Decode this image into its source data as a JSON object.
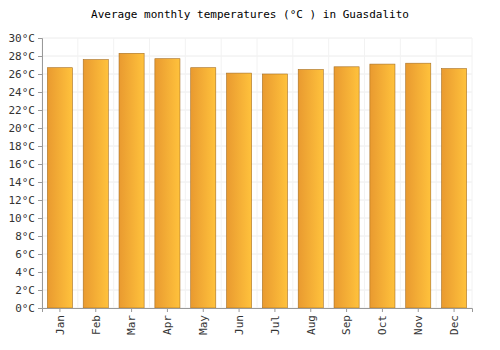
{
  "chart_data": {
    "type": "bar",
    "title": "Average monthly temperatures (°C ) in Guasdalito",
    "categories": [
      "Jan",
      "Feb",
      "Mar",
      "Apr",
      "May",
      "Jun",
      "Jul",
      "Aug",
      "Sep",
      "Oct",
      "Nov",
      "Dec"
    ],
    "values": [
      26.7,
      27.6,
      28.3,
      27.7,
      26.7,
      26.1,
      26.0,
      26.5,
      26.8,
      27.1,
      27.2,
      26.6
    ],
    "color": "#ffa834",
    "ylim": [
      0,
      30
    ],
    "yticks": [
      {
        "value": 0,
        "label": "0°C"
      },
      {
        "value": 2,
        "label": "2°C"
      },
      {
        "value": 4,
        "label": "4°C"
      },
      {
        "value": 6,
        "label": "6°C"
      },
      {
        "value": 8,
        "label": "8°C"
      },
      {
        "value": 10,
        "label": "10°C"
      },
      {
        "value": 12,
        "label": "12°C"
      },
      {
        "value": 14,
        "label": "14°C"
      },
      {
        "value": 16,
        "label": "16°C"
      },
      {
        "value": 18,
        "label": "18°C"
      },
      {
        "value": 20,
        "label": "20°C"
      },
      {
        "value": 22,
        "label": "22°C"
      },
      {
        "value": 24,
        "label": "24°C"
      },
      {
        "value": 26,
        "label": "26°C"
      },
      {
        "value": 28,
        "label": "28°C"
      },
      {
        "value": 30,
        "label": "30°C"
      }
    ],
    "grid": true
  }
}
